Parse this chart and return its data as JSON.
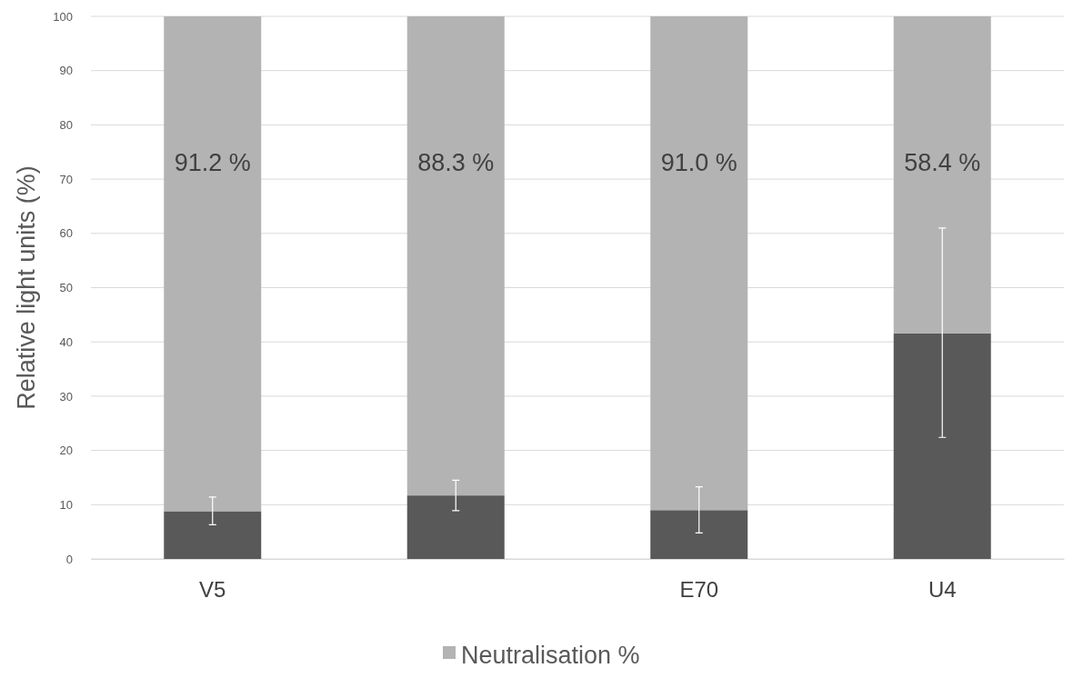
{
  "chart_data": {
    "type": "bar",
    "stacked": true,
    "ylabel": "Relative light units (%)",
    "categories": [
      "V5",
      null,
      "E70",
      "U4"
    ],
    "series": [
      {
        "color": "#595959",
        "values": [
          8.8,
          11.7,
          9.0,
          41.6
        ],
        "errors": [
          [
            6.3,
            11.4
          ],
          [
            8.9,
            14.5
          ],
          [
            4.8,
            13.3
          ],
          [
            22.4,
            61.0
          ]
        ]
      },
      {
        "name": "Neutralisation %",
        "color": "#b3b3b3",
        "values": [
          91.2,
          88.3,
          91.0,
          58.4
        ],
        "value_labels": [
          "91.2 %",
          "88.3 %",
          "91.0 %",
          "58.4 %"
        ]
      }
    ],
    "ylim": [
      0,
      100
    ],
    "yticks": [
      0,
      10,
      20,
      30,
      40,
      50,
      60,
      70,
      80,
      90,
      100
    ],
    "grid": "y",
    "legend": "bottom"
  }
}
